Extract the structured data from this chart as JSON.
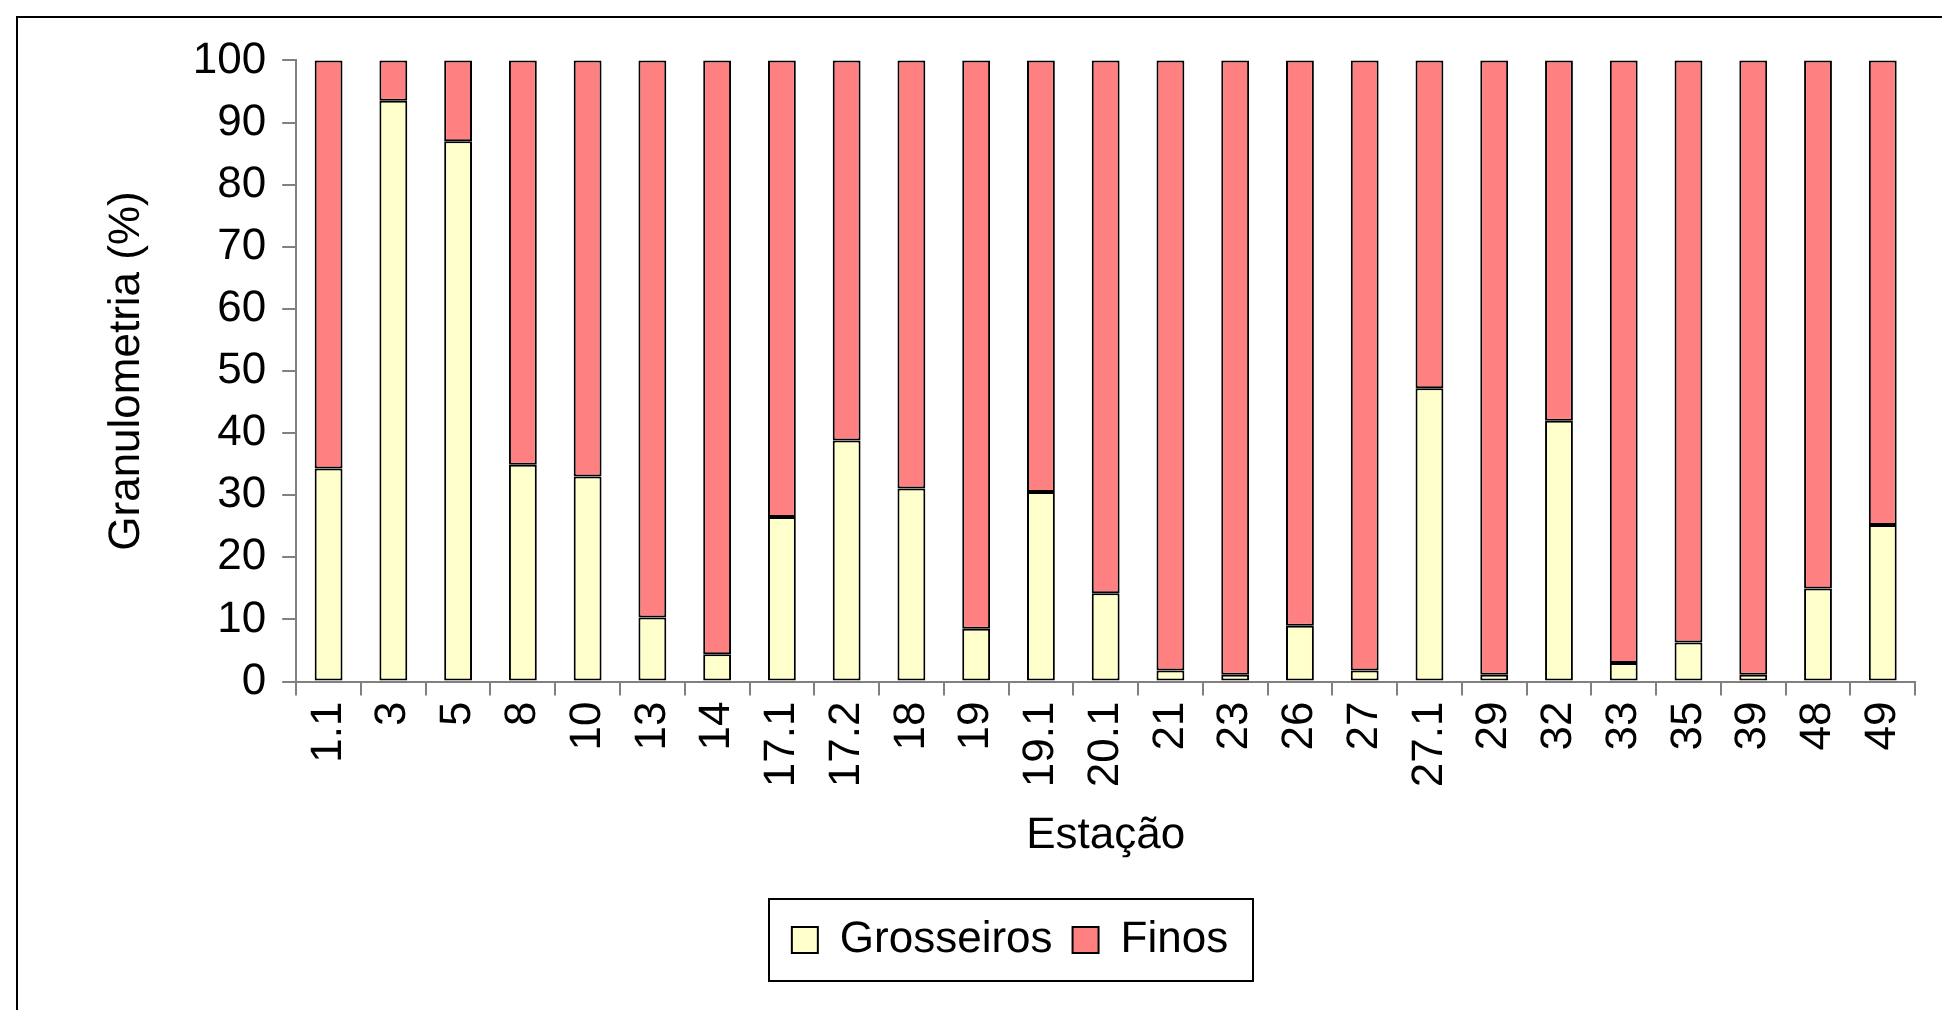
{
  "chart_data": {
    "type": "bar",
    "xlabel": "Estação",
    "ylabel": "Granulometria (%)",
    "categories": [
      "1.1",
      "3",
      "5",
      "8",
      "10",
      "13",
      "14",
      "17.1",
      "17.2",
      "18",
      "19",
      "19.1",
      "20.1",
      "21",
      "23",
      "26",
      "27",
      "27.1",
      "29",
      "32",
      "33",
      "35",
      "39",
      "48",
      "49"
    ],
    "series": [
      {
        "name": "Grosseiros",
        "color": "#ffffcc",
        "values": [
          34.3,
          93.5,
          87,
          34.9,
          33,
          10.3,
          4.4,
          26.5,
          38.8,
          31.1,
          8.5,
          30.5,
          14.2,
          1.8,
          1.1,
          9,
          1.8,
          47.2,
          1.1,
          42,
          3,
          6.3,
          1.1,
          15,
          25.2
        ]
      },
      {
        "name": "Finos",
        "color": "#ff8080",
        "values": [
          65.7,
          6.5,
          13,
          65.1,
          67,
          89.7,
          95.6,
          73.5,
          61.2,
          68.9,
          91.5,
          69.5,
          85.8,
          98.2,
          98.9,
          91,
          98.2,
          52.8,
          98.9,
          58,
          97,
          93.7,
          98.9,
          85,
          74.8
        ]
      }
    ],
    "stacked": true,
    "ylim": [
      0,
      100
    ],
    "yticks": [
      0,
      10,
      20,
      30,
      40,
      50,
      60,
      70,
      80,
      90,
      100
    ],
    "legend": "bottom"
  }
}
